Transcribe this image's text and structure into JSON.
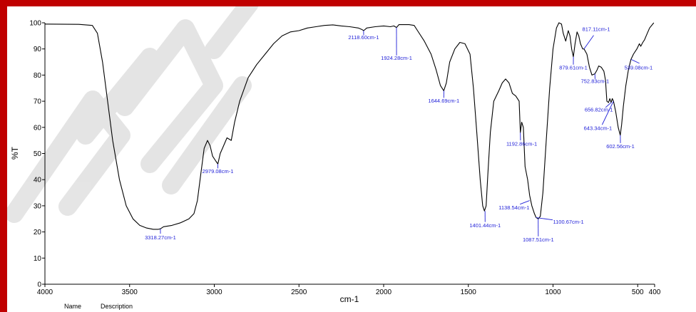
{
  "footer": {
    "name_label": "Name",
    "description_label": "Description"
  },
  "colors": {
    "frame": "#c00000",
    "spectrum": "#000000",
    "peak_label": "#1f1fd8",
    "watermark": "#dcdcdc"
  },
  "chart_data": {
    "type": "line",
    "title": "",
    "xlabel": "cm-1",
    "ylabel": "%T",
    "xlim": [
      4000,
      400
    ],
    "ylim": [
      0,
      100
    ],
    "x_reversed": true,
    "grid": false,
    "x_ticks": [
      4000,
      3500,
      3000,
      2500,
      2000,
      1500,
      1000,
      500,
      400
    ],
    "y_ticks": [
      0,
      10,
      20,
      30,
      40,
      50,
      60,
      70,
      80,
      90,
      100
    ],
    "series": [
      {
        "values": [
          [
            4000,
            99.5
          ],
          [
            3800,
            99.4
          ],
          [
            3720,
            99
          ],
          [
            3690,
            96
          ],
          [
            3660,
            85
          ],
          [
            3630,
            70
          ],
          [
            3600,
            55
          ],
          [
            3560,
            40
          ],
          [
            3520,
            30
          ],
          [
            3480,
            25
          ],
          [
            3440,
            22.5
          ],
          [
            3400,
            21.5
          ],
          [
            3360,
            21
          ],
          [
            3330,
            21
          ],
          [
            3318,
            21.2
          ],
          [
            3300,
            22
          ],
          [
            3250,
            22.5
          ],
          [
            3200,
            23.5
          ],
          [
            3150,
            25
          ],
          [
            3120,
            27
          ],
          [
            3100,
            32
          ],
          [
            3080,
            42
          ],
          [
            3060,
            52
          ],
          [
            3040,
            55
          ],
          [
            3025,
            53
          ],
          [
            3010,
            49
          ],
          [
            2990,
            47
          ],
          [
            2979,
            46
          ],
          [
            2965,
            50
          ],
          [
            2945,
            53
          ],
          [
            2925,
            56
          ],
          [
            2900,
            55
          ],
          [
            2880,
            62
          ],
          [
            2850,
            70
          ],
          [
            2800,
            79
          ],
          [
            2750,
            84
          ],
          [
            2700,
            88
          ],
          [
            2650,
            92
          ],
          [
            2600,
            95
          ],
          [
            2550,
            96.5
          ],
          [
            2500,
            97
          ],
          [
            2450,
            98
          ],
          [
            2400,
            98.5
          ],
          [
            2350,
            99
          ],
          [
            2300,
            99.2
          ],
          [
            2250,
            98.8
          ],
          [
            2200,
            98.5
          ],
          [
            2150,
            98
          ],
          [
            2130,
            97.5
          ],
          [
            2118,
            97
          ],
          [
            2100,
            98
          ],
          [
            2050,
            98.5
          ],
          [
            2000,
            98.8
          ],
          [
            1960,
            98.5
          ],
          [
            1940,
            98.8
          ],
          [
            1924,
            98.2
          ],
          [
            1910,
            99.3
          ],
          [
            1850,
            99.3
          ],
          [
            1820,
            99
          ],
          [
            1800,
            97
          ],
          [
            1760,
            93
          ],
          [
            1720,
            88
          ],
          [
            1690,
            82
          ],
          [
            1665,
            76
          ],
          [
            1645,
            74
          ],
          [
            1630,
            77
          ],
          [
            1610,
            85
          ],
          [
            1580,
            90
          ],
          [
            1550,
            92.5
          ],
          [
            1520,
            92
          ],
          [
            1490,
            88
          ],
          [
            1470,
            75
          ],
          [
            1450,
            58
          ],
          [
            1430,
            40
          ],
          [
            1415,
            30
          ],
          [
            1405,
            28
          ],
          [
            1395,
            30
          ],
          [
            1385,
            42
          ],
          [
            1370,
            58
          ],
          [
            1350,
            70
          ],
          [
            1320,
            74
          ],
          [
            1300,
            77
          ],
          [
            1280,
            78.5
          ],
          [
            1260,
            77
          ],
          [
            1240,
            73
          ],
          [
            1220,
            72
          ],
          [
            1200,
            70
          ],
          [
            1193,
            58
          ],
          [
            1185,
            62
          ],
          [
            1175,
            60
          ],
          [
            1165,
            45
          ],
          [
            1150,
            40
          ],
          [
            1138,
            34
          ],
          [
            1125,
            30
          ],
          [
            1110,
            27
          ],
          [
            1100,
            25.5
          ],
          [
            1087,
            25
          ],
          [
            1075,
            26
          ],
          [
            1060,
            35
          ],
          [
            1040,
            55
          ],
          [
            1020,
            75
          ],
          [
            1000,
            90
          ],
          [
            980,
            98
          ],
          [
            965,
            100
          ],
          [
            950,
            99.5
          ],
          [
            940,
            96
          ],
          [
            925,
            93
          ],
          [
            910,
            97
          ],
          [
            900,
            95
          ],
          [
            890,
            90
          ],
          [
            880,
            87
          ],
          [
            870,
            92
          ],
          [
            858,
            96.5
          ],
          [
            848,
            95
          ],
          [
            838,
            92
          ],
          [
            825,
            90
          ],
          [
            817,
            90
          ],
          [
            800,
            88
          ],
          [
            785,
            83
          ],
          [
            770,
            80
          ],
          [
            753,
            80.5
          ],
          [
            740,
            82
          ],
          [
            730,
            83.5
          ],
          [
            715,
            83
          ],
          [
            700,
            81.5
          ],
          [
            690,
            78
          ],
          [
            682,
            70
          ],
          [
            672,
            69.5
          ],
          [
            665,
            71
          ],
          [
            657,
            69.5
          ],
          [
            650,
            71
          ],
          [
            643,
            70
          ],
          [
            630,
            66
          ],
          [
            615,
            60
          ],
          [
            603,
            57
          ],
          [
            595,
            61
          ],
          [
            585,
            68
          ],
          [
            570,
            76
          ],
          [
            555,
            82
          ],
          [
            540,
            86
          ],
          [
            525,
            88
          ],
          [
            505,
            90
          ],
          [
            490,
            92
          ],
          [
            482,
            91
          ],
          [
            470,
            92.5
          ],
          [
            460,
            93.5
          ],
          [
            450,
            95
          ],
          [
            430,
            98
          ],
          [
            405,
            100
          ]
        ]
      }
    ],
    "peaks": [
      {
        "label": "3318.27cm-1",
        "x": 3318.27,
        "y": 21.2,
        "label_x": 3318,
        "label_y": 17.2,
        "anchor": "middle",
        "lx": 3318,
        "ly": 19.3
      },
      {
        "label": "2979.08cm-1",
        "x": 2979.08,
        "y": 46,
        "label_x": 2979,
        "label_y": 42.5,
        "anchor": "middle",
        "lx": 2979,
        "ly": 44.3
      },
      {
        "label": "2118.60cm-1",
        "x": 2118.6,
        "y": 97,
        "label_x": 2118,
        "label_y": 93.8,
        "anchor": "middle",
        "lx": 2118,
        "ly": 95.3
      },
      {
        "label": "1924.28cm-1",
        "x": 1924.28,
        "y": 98.2,
        "label_x": 1924,
        "label_y": 85.8,
        "anchor": "middle",
        "lx": 1924,
        "ly": 87.5
      },
      {
        "label": "1644.69cm-1",
        "x": 1644.69,
        "y": 74,
        "label_x": 1645,
        "label_y": 69.5,
        "anchor": "middle",
        "lx": 1645,
        "ly": 71.3
      },
      {
        "label": "1401.44cm-1",
        "x": 1401.44,
        "y": 28,
        "label_x": 1401,
        "label_y": 21.8,
        "anchor": "middle",
        "lx": 1401,
        "ly": 23.8
      },
      {
        "label": "1192.86cm-1",
        "x": 1192.86,
        "y": 58,
        "label_x": 1185,
        "label_y": 53,
        "anchor": "middle",
        "lx": 1192,
        "ly": 55
      },
      {
        "label": "1138.54cm-1",
        "x": 1138.54,
        "y": 32,
        "label_x": 1230,
        "label_y": 28.6,
        "anchor": "middle",
        "lx": 1195,
        "ly": 30.6
      },
      {
        "label": "1100.67cm-1",
        "x": 1100.67,
        "y": 25.5,
        "label_x": 1000,
        "label_y": 23.2,
        "anchor": "start",
        "lx": 1002,
        "ly": 24.6
      },
      {
        "label": "1087.51cm-1",
        "x": 1087.51,
        "y": 25,
        "label_x": 1087,
        "label_y": 16.3,
        "anchor": "middle",
        "lx": 1087,
        "ly": 18.3
      },
      {
        "label": "879.61cm-1",
        "x": 879.61,
        "y": 87,
        "label_x": 880,
        "label_y": 82.2,
        "anchor": "middle",
        "lx": 880,
        "ly": 84
      },
      {
        "label": "817.11cm-1",
        "x": 817.11,
        "y": 90,
        "label_x": 745,
        "label_y": 96.8,
        "anchor": "middle",
        "lx": 760,
        "ly": 95.2
      },
      {
        "label": "752.83cm-1",
        "x": 752.83,
        "y": 80.5,
        "label_x": 752,
        "label_y": 77,
        "anchor": "middle",
        "lx": 752,
        "ly": 78.5
      },
      {
        "label": "656.82cm-1",
        "x": 656.82,
        "y": 69.5,
        "label_x": 730,
        "label_y": 66.1,
        "anchor": "middle",
        "lx": 690,
        "ly": 67.6
      },
      {
        "label": "643.34cm-1",
        "x": 643.34,
        "y": 70,
        "label_x": 735,
        "label_y": 59,
        "anchor": "middle",
        "lx": 710,
        "ly": 61
      },
      {
        "label": "602.56cm-1",
        "x": 602.56,
        "y": 57,
        "label_x": 602,
        "label_y": 52,
        "anchor": "middle",
        "lx": 602,
        "ly": 54
      },
      {
        "label": "539.08cm-1",
        "x": 539.08,
        "y": 86,
        "label_x": 495,
        "label_y": 82.2,
        "anchor": "middle",
        "lx": 490,
        "ly": 84.5
      }
    ]
  }
}
